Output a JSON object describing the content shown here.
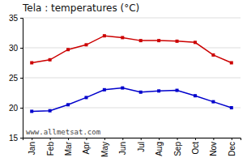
{
  "chart_data": {
    "type": "line",
    "title": "Tela : temperatures (°C)",
    "categories": [
      "Jan",
      "Feb",
      "Mar",
      "Apr",
      "May",
      "Jun",
      "Jul",
      "Aug",
      "Sep",
      "Oct",
      "Nov",
      "Dec"
    ],
    "series": [
      {
        "color": "#cc0000",
        "marker": "square",
        "line_style": "solid",
        "values": [
          27.5,
          28.0,
          29.7,
          30.5,
          32.0,
          31.7,
          31.2,
          31.2,
          31.1,
          30.9,
          28.8,
          27.5
        ]
      },
      {
        "color": "#0000cc",
        "marker": "square",
        "line_style": "solid",
        "values": [
          19.4,
          19.5,
          20.5,
          21.7,
          23.0,
          23.3,
          22.6,
          22.8,
          22.9,
          22.0,
          21.0,
          20.0
        ]
      }
    ],
    "ylim": [
      15,
      35
    ],
    "yticks": [
      15,
      20,
      25,
      30,
      35
    ],
    "grid": true,
    "annotations": [
      "www.allmetsat.com"
    ]
  }
}
